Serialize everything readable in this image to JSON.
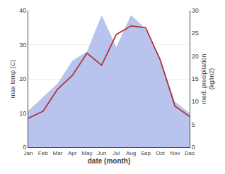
{
  "chart_data": {
    "type": "line",
    "categories": [
      "Jan",
      "Feb",
      "Mar",
      "Apr",
      "May",
      "Jun",
      "Jul",
      "Aug",
      "Sep",
      "Oct",
      "Nov",
      "Dec"
    ],
    "xlabel": "date (month)",
    "ylabel": "max temp (C)",
    "y2label": "med. precipitation\n(kg/m2)",
    "ylim": [
      0,
      40
    ],
    "yticks": [
      0,
      10,
      20,
      30,
      40
    ],
    "y2lim": [
      0,
      30
    ],
    "y2ticks": [
      0,
      5,
      10,
      15,
      20,
      25,
      30
    ],
    "grid": true,
    "series": [
      {
        "type": "area",
        "axis": "y2",
        "color": "#b8c4ee",
        "values": [
          8.0,
          11.0,
          14.0,
          19.0,
          21.0,
          29.0,
          22.0,
          29.0,
          26.0,
          19.5,
          10.0,
          7.5
        ]
      },
      {
        "type": "line",
        "color": "#b03535",
        "values": [
          8.5,
          10.5,
          17.0,
          21.0,
          27.5,
          24.0,
          33.0,
          35.5,
          35.0,
          25.5,
          12.0,
          9.0
        ]
      }
    ]
  }
}
